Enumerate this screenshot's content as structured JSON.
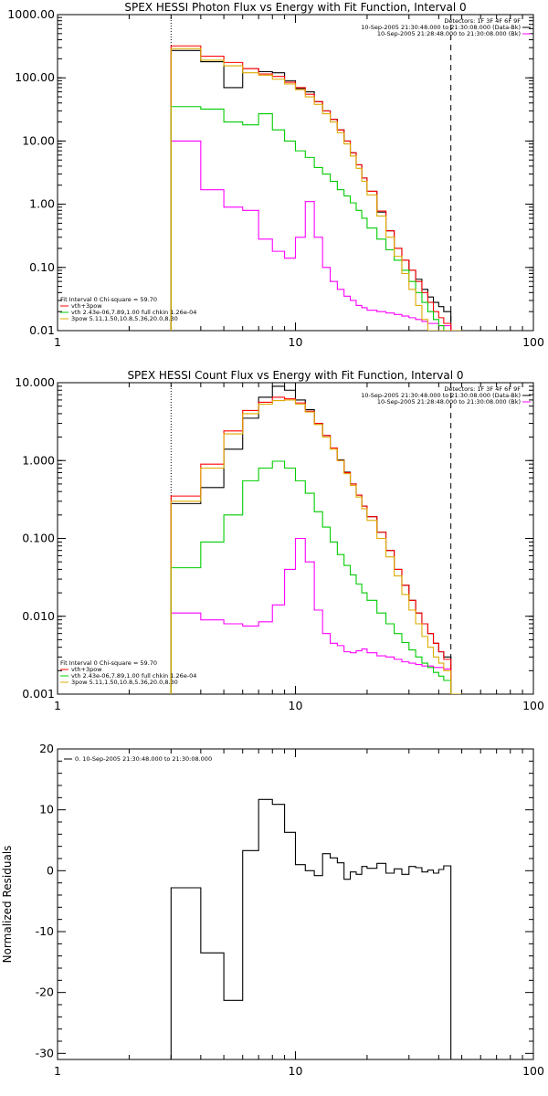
{
  "chart_data": [
    {
      "type": "line",
      "title": "SPEX HESSI Photon Flux vs Energy with Fit Function, Interval 0",
      "xscale": "log",
      "yscale": "log",
      "xlim": [
        1,
        100
      ],
      "ylim": [
        0.01,
        1000
      ],
      "xticks": [
        "1",
        "10",
        "100"
      ],
      "yticks": [
        "1000.00",
        "100.00",
        "10.00",
        "1.00",
        "0.10",
        "0.01"
      ],
      "vlines": [
        {
          "x": 3,
          "style": "dotted"
        },
        {
          "x": 45,
          "style": "dashed"
        }
      ],
      "header_lines": [
        "Detectors: 1F 3F 4F 6F 9F",
        "10-Sep-2005 21:30:48.000 to 21:30:08.000 (Data-Bk)",
        "10-Sep-2005 21:28:48.000 to 21:30:08.000 (Bk)"
      ],
      "fit_lines": [
        "Fit Interval 0   Chi-square = 59.70",
        "vth+3pow",
        "vth 2.43e-06,7.89,1.00   full chkin 1.26e-04",
        "3pow 5.11,1.50,10.8,5.36,20.0,8.30"
      ],
      "edges": [
        3,
        4,
        5,
        6,
        7,
        8,
        9,
        10,
        11,
        12,
        13,
        14,
        15,
        16,
        17,
        18,
        19,
        20,
        22,
        24,
        26,
        28,
        30,
        32,
        34,
        36,
        38,
        40,
        42,
        45,
        50
      ],
      "series": [
        {
          "name": "10-Sep-2005 21:30:48.000 to 21:30:08.000 (Data-Bk)",
          "color": "#000000",
          "values": [
            270,
            180,
            70,
            140,
            125,
            120,
            90,
            68,
            60,
            42,
            30,
            22,
            15,
            10,
            6.5,
            4.2,
            2.6,
            1.6,
            0.75,
            0.38,
            0.2,
            0.13,
            0.09,
            0.065,
            0.045,
            0.034,
            0.028,
            0.024,
            0.02,
            0.01
          ]
        },
        {
          "name": "10-Sep-2005 21:28:48.000 to 21:30:08.000 (Bk)",
          "color": "#ff00ff",
          "values": [
            10,
            1.7,
            0.9,
            0.8,
            0.28,
            0.18,
            0.14,
            0.3,
            1.1,
            0.3,
            0.1,
            0.06,
            0.045,
            0.035,
            0.03,
            0.025,
            0.023,
            0.021,
            0.02,
            0.019,
            0.018,
            0.017,
            0.016,
            0.015,
            0.014,
            0.013,
            0.013,
            0.012,
            0.012,
            0.01
          ]
        },
        {
          "name": "vth+3pow",
          "color": "#ff0000",
          "values": [
            320,
            220,
            175,
            140,
            115,
            105,
            85,
            70,
            55,
            42,
            30,
            22,
            15,
            10,
            6.5,
            4.2,
            2.6,
            1.6,
            0.78,
            0.38,
            0.2,
            0.13,
            0.09,
            0.06,
            0.04,
            0.028,
            0.02,
            0.016,
            0.013,
            0.01
          ]
        },
        {
          "name": "vth 2.43e-06,7.89,1.00   full chkin 1.26e-04",
          "color": "#00cc00",
          "values": [
            35,
            32,
            20,
            18,
            27,
            15,
            10,
            7,
            5.5,
            3.8,
            3,
            2.3,
            1.7,
            1.35,
            1.05,
            0.8,
            0.6,
            0.42,
            0.28,
            0.19,
            0.13,
            0.09,
            0.06,
            0.04,
            0.028,
            0.02,
            0.015,
            0.012,
            0.01,
            0.01
          ]
        },
        {
          "name": "3pow 5.11,1.50,10.8,5.36,20.0,8.30",
          "color": "#ddaa00",
          "values": [
            290,
            190,
            155,
            120,
            110,
            95,
            80,
            65,
            50,
            38,
            27,
            20,
            13.5,
            9,
            5.8,
            3.7,
            2.3,
            1.4,
            0.65,
            0.3,
            0.15,
            0.08,
            0.045,
            0.025,
            0.015,
            0.01,
            0.01,
            0.01,
            0.01,
            0.01
          ]
        }
      ]
    },
    {
      "type": "line",
      "title": "SPEX HESSI Count Flux vs Energy with Fit Function, Interval 0",
      "xscale": "log",
      "yscale": "log",
      "xlim": [
        1,
        100
      ],
      "ylim": [
        0.001,
        10
      ],
      "xticks": [
        "1",
        "10",
        "100"
      ],
      "yticks": [
        "10.000",
        "1.000",
        "0.100",
        "0.010",
        "0.001"
      ],
      "vlines": [
        {
          "x": 3,
          "style": "dotted"
        },
        {
          "x": 45,
          "style": "dashed"
        }
      ],
      "header_lines": [
        "Detectors: 1F 3F 4F 6F 9F",
        "10-Sep-2005 21:30:48.000 to 21:30:08.000 (Data-Bk)",
        "10-Sep-2005 21:28:48.000 to 21:30:08.000 (Bk)"
      ],
      "fit_lines": [
        "Fit Interval 0   Chi-square = 59.70",
        "vth+3pow",
        "vth 2.43e-06,7.89,1.00   full chkin 1.26e-04",
        "3pow 5.11,1.50,10.8,5.36,20.0,8.30"
      ],
      "edges": [
        3,
        4,
        5,
        6,
        7,
        8,
        9,
        10,
        11,
        12,
        13,
        14,
        15,
        16,
        17,
        18,
        19,
        20,
        22,
        24,
        26,
        28,
        30,
        32,
        34,
        36,
        38,
        40,
        42,
        45,
        50
      ],
      "series": [
        {
          "name": "10-Sep-2005 21:30:48.000 to 21:30:08.000 (Data-Bk)",
          "color": "#000000",
          "values": [
            0.28,
            0.45,
            1.4,
            3.5,
            6.5,
            9,
            8,
            6,
            4.5,
            3,
            2.1,
            1.45,
            1.02,
            0.71,
            0.5,
            0.36,
            0.26,
            0.19,
            0.12,
            0.07,
            0.04,
            0.025,
            0.016,
            0.011,
            0.008,
            0.006,
            0.0045,
            0.0035,
            0.003,
            0.001
          ]
        },
        {
          "name": "10-Sep-2005 21:28:48.000 to 21:30:08.000 (Bk)",
          "color": "#ff00ff",
          "values": [
            0.011,
            0.009,
            0.008,
            0.0075,
            0.0085,
            0.014,
            0.04,
            0.1,
            0.05,
            0.012,
            0.006,
            0.0045,
            0.0042,
            0.0035,
            0.0034,
            0.0036,
            0.0038,
            0.0034,
            0.0031,
            0.003,
            0.0028,
            0.0026,
            0.0025,
            0.0024,
            0.0023,
            0.0023,
            0.0022,
            0.0022,
            0.0021,
            0.001
          ]
        },
        {
          "name": "vth+3pow",
          "color": "#ff0000",
          "values": [
            0.35,
            0.9,
            2.4,
            4.4,
            5.6,
            6.5,
            6.2,
            5.5,
            4.3,
            3,
            2.1,
            1.45,
            1,
            0.7,
            0.5,
            0.36,
            0.26,
            0.19,
            0.12,
            0.07,
            0.04,
            0.025,
            0.016,
            0.011,
            0.008,
            0.006,
            0.0045,
            0.0035,
            0.0028,
            0.001
          ]
        },
        {
          "name": "vth 2.43e-06,7.89,1.00   full chkin 1.26e-04",
          "color": "#00cc00",
          "values": [
            0.042,
            0.09,
            0.2,
            0.55,
            0.8,
            0.98,
            0.8,
            0.55,
            0.38,
            0.22,
            0.14,
            0.09,
            0.062,
            0.045,
            0.034,
            0.026,
            0.02,
            0.016,
            0.011,
            0.008,
            0.006,
            0.0046,
            0.0037,
            0.003,
            0.0025,
            0.0022,
            0.0019,
            0.0017,
            0.0015,
            0.001
          ]
        },
        {
          "name": "3pow 5.11,1.50,10.8,5.36,20.0,8.30",
          "color": "#ddaa00",
          "values": [
            0.3,
            0.8,
            2.2,
            4,
            5.3,
            5.9,
            6,
            5.3,
            4.2,
            2.9,
            2,
            1.4,
            1,
            0.68,
            0.48,
            0.34,
            0.24,
            0.17,
            0.1,
            0.058,
            0.033,
            0.019,
            0.012,
            0.008,
            0.0055,
            0.004,
            0.003,
            0.0025,
            0.002,
            0.001
          ]
        }
      ]
    },
    {
      "type": "line",
      "ylabel": "Normalized Residuals",
      "xscale": "log",
      "yscale": "linear",
      "xlim": [
        1,
        100
      ],
      "ylim": [
        -31,
        20
      ],
      "xticks": [
        "1",
        "10",
        "100"
      ],
      "yticks": [
        "20",
        "10",
        "0",
        "-10",
        "-20",
        "-30"
      ],
      "legend": "0. 10-Sep-2005 21:30:48.000 to 21:30:08.000",
      "edges": [
        3,
        4,
        5,
        6,
        7,
        8,
        9,
        10,
        11,
        12,
        13,
        14,
        15,
        16,
        17,
        18,
        19,
        20,
        22,
        24,
        26,
        28,
        30,
        32,
        34,
        36,
        38,
        40,
        42,
        45
      ],
      "series": [
        {
          "name": "0. 10-Sep-2005 21:30:48.000 to 21:30:08.000",
          "color": "#000000",
          "values": [
            -2.8,
            -13.5,
            -21.3,
            3.3,
            11.7,
            10.9,
            6.3,
            1,
            0,
            -0.8,
            2.8,
            2.1,
            1.3,
            -1.4,
            -0.2,
            -0.6,
            0.7,
            0.4,
            1.2,
            -0.4,
            0.3,
            -0.6,
            0.7,
            0.5,
            -0.2,
            0.1,
            -0.4,
            0.2,
            0.8
          ]
        }
      ]
    }
  ]
}
